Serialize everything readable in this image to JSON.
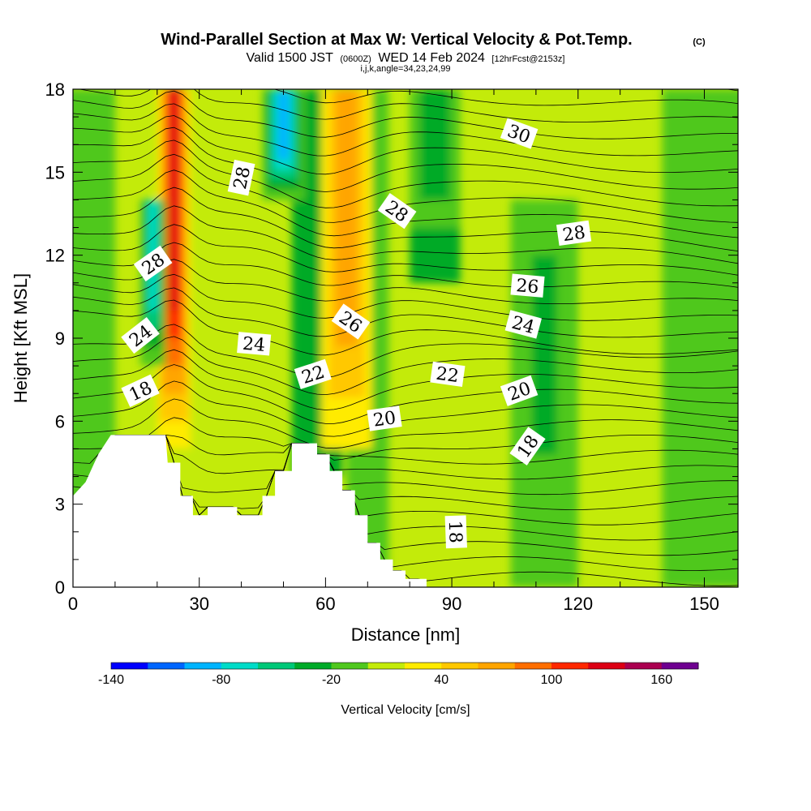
{
  "header": {
    "title": "Wind-Parallel Section at Max W: Vertical Velocity & Pot.Temp.",
    "copyright": "(C)",
    "valid_prefix": "Valid 1500 JST",
    "valid_utc": "(0600Z)",
    "valid_date": "WED 14 Feb 2024",
    "forecast": "[12hrFcst@2153z]",
    "indices": "i,j,k,angle=34,23,24,99"
  },
  "chart_data": {
    "type": "heatmap",
    "xlabel": "Distance [nm]",
    "ylabel": "Height [Kft MSL]",
    "xlim": [
      0,
      158
    ],
    "ylim": [
      0,
      18
    ],
    "x_ticks": [
      0,
      30,
      60,
      90,
      120,
      150
    ],
    "y_ticks": [
      0,
      3,
      6,
      9,
      12,
      15,
      18
    ],
    "colorbar": {
      "label": "Vertical Velocity [cm/s]",
      "tick_labels": [
        "-140",
        "-80",
        "-20",
        "40",
        "100",
        "160"
      ],
      "tick_values": [
        -140,
        -80,
        -20,
        40,
        100,
        160
      ],
      "levels": [
        -140,
        -120,
        -100,
        -80,
        -60,
        -40,
        -20,
        0,
        20,
        40,
        60,
        80,
        100,
        120,
        140,
        160,
        180
      ],
      "colors": [
        "#0000ff",
        "#0066ff",
        "#00b4ff",
        "#00dcc8",
        "#00c878",
        "#00aa28",
        "#50c81e",
        "#c3eb0a",
        "#ffeb00",
        "#ffc800",
        "#ffa500",
        "#ff6e00",
        "#ff2800",
        "#dc0014",
        "#aa0050",
        "#6e0090"
      ]
    },
    "terrain_kft": [
      [
        0,
        3.3
      ],
      [
        3,
        3.8
      ],
      [
        6,
        4.8
      ],
      [
        9,
        5.5
      ],
      [
        12,
        5.5
      ],
      [
        18,
        5.5
      ],
      [
        22,
        5.5
      ],
      [
        22.5,
        4.5
      ],
      [
        25.5,
        4.5
      ],
      [
        25.5,
        3.3
      ],
      [
        28.5,
        3.3
      ],
      [
        28.5,
        2.6
      ],
      [
        32,
        2.6
      ],
      [
        32,
        2.9
      ],
      [
        39,
        2.9
      ],
      [
        39,
        2.6
      ],
      [
        45,
        2.6
      ],
      [
        45,
        3.3
      ],
      [
        48,
        3.3
      ],
      [
        48,
        4.2
      ],
      [
        52,
        4.2
      ],
      [
        52,
        5.2
      ],
      [
        58,
        5.2
      ],
      [
        58,
        4.8
      ],
      [
        61,
        4.8
      ],
      [
        61,
        4.2
      ],
      [
        64,
        4.2
      ],
      [
        64,
        3.5
      ],
      [
        67,
        3.5
      ],
      [
        67,
        2.6
      ],
      [
        70,
        2.6
      ],
      [
        70,
        1.6
      ],
      [
        73,
        1.6
      ],
      [
        73,
        1.0
      ],
      [
        76,
        1.0
      ],
      [
        76,
        0.6
      ],
      [
        79,
        0.6
      ],
      [
        79,
        0.3
      ],
      [
        84,
        0.3
      ],
      [
        84,
        0.0
      ],
      [
        86,
        0.0
      ]
    ],
    "velocity_features": [
      {
        "type": "updraft",
        "x_center": 24,
        "x_width": 4,
        "z_range": [
          5,
          18
        ],
        "w_max": 120
      },
      {
        "type": "downdraft",
        "x_center": 19,
        "x_width": 3,
        "z_range": [
          8,
          14
        ],
        "w_min": -80
      },
      {
        "type": "downdraft",
        "x_center": 50,
        "x_width": 5,
        "z_range": [
          14,
          18
        ],
        "w_min": -100
      },
      {
        "type": "updraft",
        "x_center": 65,
        "x_width": 6,
        "z_range": [
          5,
          18
        ],
        "w_max": 60
      },
      {
        "type": "downdraft",
        "x_center": 86,
        "x_width": 6,
        "z_range": [
          13,
          18
        ],
        "w_min": -40
      },
      {
        "type": "downdraft",
        "x_center": 112,
        "x_width": 5,
        "z_range": [
          3,
          12
        ],
        "w_min": -40
      }
    ],
    "contours": {
      "variable": "Potential Temperature",
      "interval": 1,
      "labeled_values": [
        18,
        20,
        22,
        24,
        26,
        28,
        30
      ],
      "labels": [
        {
          "text": "28",
          "x": 40,
          "z": 14.8,
          "angle": 78
        },
        {
          "text": "28",
          "x": 19,
          "z": 11.7,
          "angle": 35
        },
        {
          "text": "24",
          "x": 16,
          "z": 9.1,
          "angle": 38
        },
        {
          "text": "18",
          "x": 16,
          "z": 7.1,
          "angle": 25
        },
        {
          "text": "24",
          "x": 43,
          "z": 8.8,
          "angle": -5
        },
        {
          "text": "22",
          "x": 57,
          "z": 7.7,
          "angle": 18
        },
        {
          "text": "26",
          "x": 66,
          "z": 9.6,
          "angle": -35
        },
        {
          "text": "20",
          "x": 74,
          "z": 6.1,
          "angle": 8
        },
        {
          "text": "28",
          "x": 77,
          "z": 13.6,
          "angle": -35
        },
        {
          "text": "22",
          "x": 89,
          "z": 7.7,
          "angle": -8
        },
        {
          "text": "18",
          "x": 91,
          "z": 2.0,
          "angle": -88
        },
        {
          "text": "30",
          "x": 106,
          "z": 16.4,
          "angle": -20
        },
        {
          "text": "26",
          "x": 108,
          "z": 10.9,
          "angle": -5
        },
        {
          "text": "24",
          "x": 107,
          "z": 9.5,
          "angle": -15
        },
        {
          "text": "20",
          "x": 106,
          "z": 7.1,
          "angle": 20
        },
        {
          "text": "18",
          "x": 108,
          "z": 5.1,
          "angle": 55
        },
        {
          "text": "28",
          "x": 119,
          "z": 12.8,
          "angle": 8
        }
      ]
    }
  }
}
